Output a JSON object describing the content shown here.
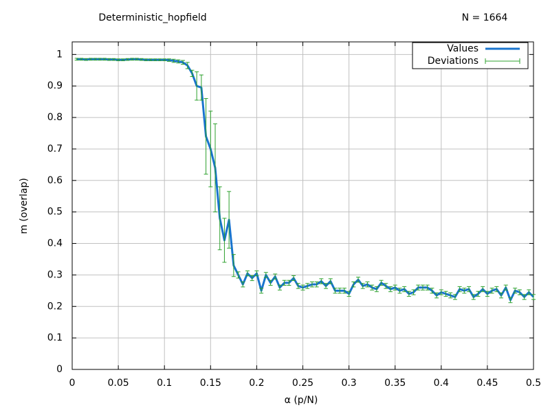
{
  "chart_data": {
    "type": "line",
    "title": "Deterministic_hopfield",
    "annotation": "N = 1664",
    "x_label": "α (p/N)",
    "y_label": "m (overlap)",
    "x": [
      0.005,
      0.01,
      0.015,
      0.02,
      0.025,
      0.03,
      0.035,
      0.04,
      0.045,
      0.05,
      0.055,
      0.06,
      0.065,
      0.07,
      0.075,
      0.08,
      0.085,
      0.09,
      0.095,
      0.1,
      0.105,
      0.11,
      0.115,
      0.12,
      0.125,
      0.13,
      0.135,
      0.14,
      0.145,
      0.15,
      0.155,
      0.16,
      0.165,
      0.17,
      0.175,
      0.18,
      0.185,
      0.19,
      0.195,
      0.2,
      0.205,
      0.21,
      0.215,
      0.22,
      0.225,
      0.23,
      0.235,
      0.24,
      0.245,
      0.25,
      0.255,
      0.26,
      0.265,
      0.27,
      0.275,
      0.28,
      0.285,
      0.29,
      0.295,
      0.3,
      0.305,
      0.31,
      0.315,
      0.32,
      0.325,
      0.33,
      0.335,
      0.34,
      0.345,
      0.35,
      0.355,
      0.36,
      0.365,
      0.37,
      0.375,
      0.38,
      0.385,
      0.39,
      0.395,
      0.4,
      0.405,
      0.41,
      0.415,
      0.42,
      0.425,
      0.43,
      0.435,
      0.44,
      0.445,
      0.45,
      0.455,
      0.46,
      0.465,
      0.47,
      0.475,
      0.48,
      0.485,
      0.49,
      0.495,
      0.5
    ],
    "series": [
      {
        "name": "Values",
        "color": "#1874cd",
        "values": [
          0.985,
          0.985,
          0.984,
          0.985,
          0.985,
          0.985,
          0.985,
          0.984,
          0.984,
          0.983,
          0.983,
          0.984,
          0.985,
          0.985,
          0.984,
          0.983,
          0.983,
          0.983,
          0.983,
          0.983,
          0.982,
          0.98,
          0.978,
          0.975,
          0.965,
          0.94,
          0.9,
          0.895,
          0.74,
          0.7,
          0.64,
          0.48,
          0.41,
          0.475,
          0.33,
          0.3,
          0.27,
          0.305,
          0.29,
          0.305,
          0.25,
          0.3,
          0.275,
          0.295,
          0.26,
          0.275,
          0.275,
          0.29,
          0.265,
          0.26,
          0.265,
          0.27,
          0.27,
          0.28,
          0.265,
          0.28,
          0.25,
          0.25,
          0.25,
          0.24,
          0.27,
          0.285,
          0.265,
          0.27,
          0.26,
          0.255,
          0.275,
          0.265,
          0.255,
          0.26,
          0.25,
          0.255,
          0.24,
          0.245,
          0.26,
          0.26,
          0.26,
          0.25,
          0.235,
          0.245,
          0.24,
          0.235,
          0.23,
          0.255,
          0.25,
          0.255,
          0.23,
          0.24,
          0.255,
          0.24,
          0.25,
          0.255,
          0.235,
          0.26,
          0.22,
          0.25,
          0.245,
          0.23,
          0.245,
          0.23
        ]
      }
    ],
    "error_bars": {
      "name": "Deviations",
      "color": "#2ca02c",
      "values": [
        0.003,
        0.003,
        0.003,
        0.003,
        0.003,
        0.003,
        0.003,
        0.003,
        0.003,
        0.003,
        0.003,
        0.003,
        0.003,
        0.003,
        0.003,
        0.003,
        0.003,
        0.003,
        0.003,
        0.003,
        0.004,
        0.005,
        0.005,
        0.006,
        0.01,
        0.01,
        0.045,
        0.04,
        0.12,
        0.12,
        0.14,
        0.1,
        0.07,
        0.09,
        0.035,
        0.01,
        0.008,
        0.008,
        0.008,
        0.008,
        0.008,
        0.008,
        0.008,
        0.008,
        0.008,
        0.008,
        0.008,
        0.008,
        0.008,
        0.008,
        0.008,
        0.008,
        0.008,
        0.008,
        0.008,
        0.008,
        0.008,
        0.008,
        0.008,
        0.008,
        0.008,
        0.008,
        0.008,
        0.008,
        0.008,
        0.008,
        0.008,
        0.008,
        0.008,
        0.008,
        0.008,
        0.008,
        0.008,
        0.008,
        0.008,
        0.008,
        0.008,
        0.008,
        0.008,
        0.008,
        0.008,
        0.008,
        0.008,
        0.008,
        0.008,
        0.008,
        0.008,
        0.008,
        0.008,
        0.008,
        0.008,
        0.008,
        0.008,
        0.008,
        0.008,
        0.008,
        0.008,
        0.008,
        0.008,
        0.008
      ]
    },
    "xlim": [
      0,
      0.5
    ],
    "ylim": [
      0,
      1.04
    ],
    "xticks": [
      0,
      0.05,
      0.1,
      0.15,
      0.2,
      0.25,
      0.3,
      0.35,
      0.4,
      0.45,
      0.5
    ],
    "yticks": [
      0,
      0.1,
      0.2,
      0.3,
      0.4,
      0.5,
      0.6,
      0.7,
      0.8,
      0.9,
      1
    ],
    "grid": true,
    "legend": "top-right"
  }
}
